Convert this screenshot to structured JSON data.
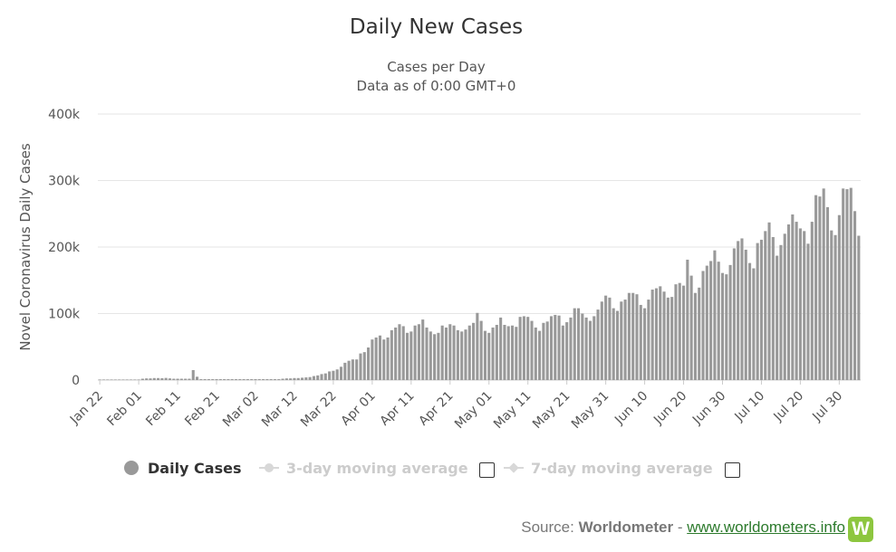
{
  "chart_data": {
    "type": "bar",
    "title": "Daily New Cases",
    "subtitle_lines": [
      "Cases per Day",
      "Data as of 0:00 GMT+0"
    ],
    "ylabel": "Novel Coronavirus Daily Cases",
    "ylim": [
      0,
      400000
    ],
    "y_ticks": [
      0,
      100000,
      200000,
      300000,
      400000
    ],
    "y_tick_labels": [
      "0",
      "100k",
      "200k",
      "300k",
      "400k"
    ],
    "x_tick_labels": [
      "Jan 22",
      "Feb 01",
      "Feb 11",
      "Feb 21",
      "Mar 02",
      "Mar 12",
      "Mar 22",
      "Apr 01",
      "Apr 11",
      "Apr 21",
      "May 01",
      "May 11",
      "May 21",
      "May 31",
      "Jun 10",
      "Jun 20",
      "Jun 30",
      "Jul 10",
      "Jul 20",
      "Jul 30"
    ],
    "first_date": "Jan 22",
    "last_date": "Aug 01",
    "grid": true,
    "series": [
      {
        "name": "Daily Cases",
        "color": "#999999",
        "values": [
          0,
          0,
          0,
          0,
          0,
          0,
          0,
          0,
          0,
          0,
          0,
          2000,
          2500,
          2500,
          3000,
          3000,
          2800,
          3200,
          2500,
          2000,
          2000,
          2000,
          2000,
          2000,
          15000,
          5000,
          1000,
          1000,
          1000,
          1000,
          1000,
          1000,
          1000,
          1000,
          1000,
          1000,
          1000,
          1000,
          1000,
          1000,
          1000,
          1000,
          1000,
          1000,
          1000,
          1000,
          1000,
          2000,
          2500,
          2500,
          3000,
          3000,
          3500,
          4000,
          4500,
          6000,
          7000,
          9000,
          10000,
          13000,
          14000,
          16000,
          20000,
          26000,
          29000,
          31000,
          31000,
          40000,
          42000,
          49000,
          61000,
          64000,
          67000,
          61000,
          64000,
          75000,
          79000,
          84000,
          81000,
          71000,
          73000,
          82000,
          84000,
          91000,
          79000,
          73000,
          69000,
          71000,
          82000,
          79000,
          84000,
          82000,
          75000,
          73000,
          76000,
          82000,
          86000,
          101000,
          89000,
          74000,
          71000,
          79000,
          83000,
          94000,
          83000,
          81000,
          82000,
          80000,
          95000,
          96000,
          95000,
          89000,
          79000,
          74000,
          86000,
          88000,
          96000,
          98000,
          97000,
          82000,
          87000,
          94000,
          108000,
          108000,
          100000,
          94000,
          89000,
          96000,
          106000,
          118000,
          127000,
          124000,
          108000,
          104000,
          118000,
          121000,
          131000,
          131000,
          129000,
          113000,
          108000,
          121000,
          136000,
          138000,
          141000,
          133000,
          124000,
          125000,
          144000,
          146000,
          142000,
          181000,
          157000,
          131000,
          139000,
          164000,
          172000,
          179000,
          195000,
          178000,
          161000,
          159000,
          173000,
          198000,
          209000,
          213000,
          196000,
          176000,
          168000,
          206000,
          211000,
          224000,
          237000,
          215000,
          187000,
          203000,
          220000,
          234000,
          249000,
          238000,
          228000,
          224000,
          205000,
          238000,
          278000,
          276000,
          288000,
          260000,
          225000,
          218000,
          248000,
          288000,
          287000,
          289000,
          254000,
          217000
        ]
      }
    ],
    "legend_position": "bottom-center"
  },
  "legend": {
    "items": [
      {
        "label": "Daily Cases",
        "active": true
      },
      {
        "label": "3-day moving average",
        "active": false
      },
      {
        "label": "7-day moving average",
        "active": false
      }
    ]
  },
  "source": {
    "prefix": "Source: ",
    "name": "Worldometer",
    "separator": " - ",
    "link": "www.worldometers.info",
    "logo_letter": "W"
  },
  "colors": {
    "bar": "#999999",
    "grid": "#e6e6e6",
    "legend_inactive": "#cccccc",
    "logo": "#8dc63f"
  }
}
